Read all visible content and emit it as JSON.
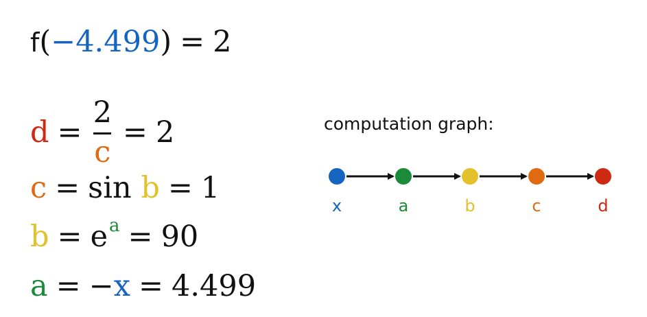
{
  "colors": {
    "x": "#1565c0",
    "a": "#1b8a3a",
    "b": "#e2c12a",
    "c": "#e06a12",
    "d": "#cc2a12",
    "text": "#111111"
  },
  "equations": {
    "f": {
      "fn": "f",
      "open": "(",
      "arg": "−4.499",
      "close": ")",
      "eq": "=",
      "value": "2"
    },
    "d": {
      "lhs": "d",
      "eq1": "=",
      "num": "2",
      "den": "c",
      "eq2": "=",
      "value": "2"
    },
    "c": {
      "lhs": "c",
      "eq1": "=",
      "func": "sin",
      "arg": "b",
      "eq2": "=",
      "value": "1"
    },
    "b": {
      "lhs": "b",
      "eq1": "=",
      "base": "e",
      "exp": "a",
      "eq2": "=",
      "value": "90"
    },
    "a": {
      "lhs": "a",
      "eq1": "=",
      "neg": "−",
      "arg": "x",
      "eq2": "=",
      "value": "4.499"
    }
  },
  "graph": {
    "title": "computation graph:",
    "nodes": [
      {
        "id": "x",
        "label": "x",
        "color": "#1565c0"
      },
      {
        "id": "a",
        "label": "a",
        "color": "#1b8a3a"
      },
      {
        "id": "b",
        "label": "b",
        "color": "#e2c12a"
      },
      {
        "id": "c",
        "label": "c",
        "color": "#e06a12"
      },
      {
        "id": "d",
        "label": "d",
        "color": "#cc2a12"
      }
    ],
    "edges": [
      [
        "x",
        "a"
      ],
      [
        "a",
        "b"
      ],
      [
        "b",
        "c"
      ],
      [
        "c",
        "d"
      ]
    ]
  }
}
